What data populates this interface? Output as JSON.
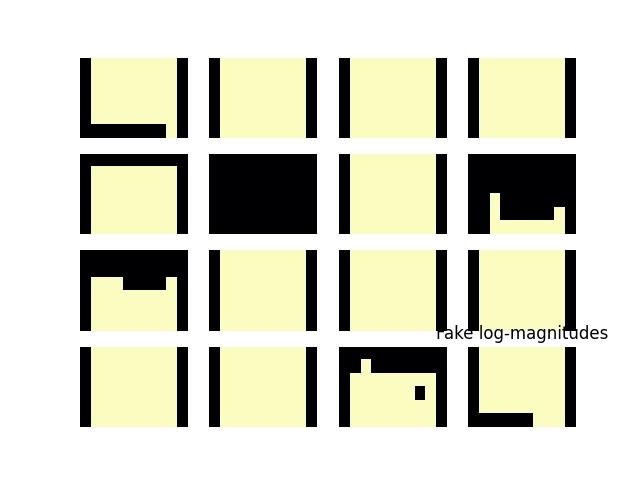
{
  "chart_data": {
    "type": "heatmap",
    "tick_labels": false,
    "color_range": [
      0,
      1
    ],
    "panels": [
      {
        "cells": [
          [
            0,
            1,
            1,
            1,
            1,
            1,
            1,
            1,
            1,
            0
          ],
          [
            0,
            1,
            1,
            1,
            1,
            1,
            1,
            1,
            1,
            0
          ],
          [
            0,
            1,
            1,
            1,
            1,
            1,
            1,
            1,
            1,
            0
          ],
          [
            0,
            1,
            1,
            1,
            1,
            1,
            1,
            1,
            1,
            0
          ],
          [
            0,
            1,
            1,
            1,
            1,
            1,
            1,
            1,
            1,
            0
          ],
          [
            0,
            0,
            0,
            0,
            0,
            0,
            0,
            0,
            1,
            0
          ]
        ]
      },
      {
        "cells": [
          [
            0,
            1,
            1,
            1,
            1,
            1,
            1,
            1,
            1,
            0
          ],
          [
            0,
            1,
            1,
            1,
            1,
            1,
            1,
            1,
            1,
            0
          ],
          [
            0,
            1,
            1,
            1,
            1,
            1,
            1,
            1,
            1,
            0
          ],
          [
            0,
            1,
            1,
            1,
            1,
            1,
            1,
            1,
            1,
            0
          ],
          [
            0,
            1,
            1,
            1,
            1,
            1,
            1,
            1,
            1,
            0
          ],
          [
            0,
            1,
            1,
            1,
            1,
            1,
            1,
            1,
            1,
            0
          ]
        ]
      },
      {
        "cells": [
          [
            0,
            1,
            1,
            1,
            1,
            1,
            1,
            1,
            1,
            0
          ],
          [
            0,
            1,
            1,
            1,
            1,
            1,
            1,
            1,
            1,
            0
          ],
          [
            0,
            1,
            1,
            1,
            1,
            1,
            1,
            1,
            1,
            0
          ],
          [
            0,
            1,
            1,
            1,
            1,
            1,
            1,
            1,
            1,
            0
          ],
          [
            0,
            1,
            1,
            1,
            1,
            1,
            1,
            1,
            1,
            0
          ],
          [
            0,
            1,
            1,
            1,
            1,
            1,
            1,
            1,
            1,
            0
          ]
        ]
      },
      {
        "cells": [
          [
            0,
            1,
            1,
            1,
            1,
            1,
            1,
            1,
            1,
            0
          ],
          [
            0,
            1,
            1,
            1,
            1,
            1,
            1,
            1,
            1,
            0
          ],
          [
            0,
            1,
            1,
            1,
            1,
            1,
            1,
            1,
            1,
            0
          ],
          [
            0,
            1,
            1,
            1,
            1,
            1,
            1,
            1,
            1,
            0
          ],
          [
            0,
            1,
            1,
            1,
            1,
            1,
            1,
            1,
            1,
            0
          ],
          [
            0,
            1,
            1,
            1,
            1,
            1,
            1,
            1,
            1,
            0
          ]
        ]
      },
      {
        "cells": [
          [
            0,
            0,
            0,
            0,
            0,
            0,
            0,
            0,
            0,
            0
          ],
          [
            0,
            1,
            1,
            1,
            1,
            1,
            1,
            1,
            1,
            0
          ],
          [
            0,
            1,
            1,
            1,
            1,
            1,
            1,
            1,
            1,
            0
          ],
          [
            0,
            1,
            1,
            1,
            1,
            1,
            1,
            1,
            1,
            0
          ],
          [
            0,
            1,
            1,
            1,
            1,
            1,
            1,
            1,
            1,
            0
          ],
          [
            0,
            1,
            1,
            1,
            1,
            1,
            1,
            1,
            1,
            0
          ]
        ]
      },
      {
        "cells": [
          [
            0,
            0,
            0,
            0,
            0,
            0,
            0,
            0,
            0,
            0
          ],
          [
            0,
            0,
            0,
            0,
            0,
            0,
            0,
            0,
            0,
            0
          ],
          [
            0,
            0,
            0,
            0,
            0,
            0,
            0,
            0,
            0,
            0
          ],
          [
            0,
            0,
            0,
            0,
            0,
            0,
            0,
            0,
            0,
            0
          ],
          [
            0,
            0,
            0,
            0,
            0,
            0,
            0,
            0,
            0,
            0
          ],
          [
            0,
            0,
            0,
            0,
            0,
            0,
            0,
            0,
            0,
            0
          ]
        ]
      },
      {
        "cells": [
          [
            0,
            1,
            1,
            1,
            1,
            1,
            1,
            1,
            1,
            0
          ],
          [
            0,
            1,
            1,
            1,
            1,
            1,
            1,
            1,
            1,
            0
          ],
          [
            0,
            1,
            1,
            1,
            1,
            1,
            1,
            1,
            1,
            0
          ],
          [
            0,
            1,
            1,
            1,
            1,
            1,
            1,
            1,
            1,
            0
          ],
          [
            0,
            1,
            1,
            1,
            1,
            1,
            1,
            1,
            1,
            0
          ],
          [
            0,
            1,
            1,
            1,
            1,
            1,
            1,
            1,
            1,
            0
          ]
        ]
      },
      {
        "cells": [
          [
            0,
            0,
            0,
            0,
            0,
            0,
            0,
            0,
            0,
            0
          ],
          [
            0,
            0,
            0,
            0,
            0,
            0,
            0,
            0,
            0,
            0
          ],
          [
            0,
            0,
            0,
            0,
            0,
            0,
            0,
            0,
            0,
            0
          ],
          [
            0,
            0,
            1,
            0,
            0,
            0,
            0,
            0,
            0,
            0
          ],
          [
            0,
            0,
            1,
            0,
            0,
            0,
            0,
            0,
            1,
            0
          ],
          [
            0,
            0,
            1,
            1,
            1,
            1,
            1,
            1,
            1,
            0
          ]
        ]
      },
      {
        "cells": [
          [
            0,
            0,
            0,
            0,
            0,
            0,
            0,
            0,
            0,
            0
          ],
          [
            0,
            0,
            0,
            0,
            0,
            0,
            0,
            0,
            0,
            0
          ],
          [
            0,
            1,
            1,
            1,
            0,
            0,
            0,
            0,
            1,
            0
          ],
          [
            0,
            1,
            1,
            1,
            1,
            1,
            1,
            1,
            1,
            0
          ],
          [
            0,
            1,
            1,
            1,
            1,
            1,
            1,
            1,
            1,
            0
          ],
          [
            0,
            1,
            1,
            1,
            1,
            1,
            1,
            1,
            1,
            0
          ]
        ]
      },
      {
        "cells": [
          [
            0,
            1,
            1,
            1,
            1,
            1,
            1,
            1,
            1,
            0
          ],
          [
            0,
            1,
            1,
            1,
            1,
            1,
            1,
            1,
            1,
            0
          ],
          [
            0,
            1,
            1,
            1,
            1,
            1,
            1,
            1,
            1,
            0
          ],
          [
            0,
            1,
            1,
            1,
            1,
            1,
            1,
            1,
            1,
            0
          ],
          [
            0,
            1,
            1,
            1,
            1,
            1,
            1,
            1,
            1,
            0
          ],
          [
            0,
            1,
            1,
            1,
            1,
            1,
            1,
            1,
            1,
            0
          ]
        ]
      },
      {
        "cells": [
          [
            0,
            1,
            1,
            1,
            1,
            1,
            1,
            1,
            1,
            0
          ],
          [
            0,
            1,
            1,
            1,
            1,
            1,
            1,
            1,
            1,
            0
          ],
          [
            0,
            1,
            1,
            1,
            1,
            1,
            1,
            1,
            1,
            0
          ],
          [
            0,
            1,
            1,
            1,
            1,
            1,
            1,
            1,
            1,
            0
          ],
          [
            0,
            1,
            1,
            1,
            1,
            1,
            1,
            1,
            1,
            0
          ],
          [
            0,
            1,
            1,
            1,
            1,
            1,
            1,
            1,
            1,
            0
          ]
        ]
      },
      {
        "cells": [
          [
            0,
            1,
            1,
            1,
            1,
            1,
            1,
            1,
            1,
            0
          ],
          [
            0,
            1,
            1,
            1,
            1,
            1,
            1,
            1,
            1,
            0
          ],
          [
            0,
            1,
            1,
            1,
            1,
            1,
            1,
            1,
            1,
            0
          ],
          [
            0,
            1,
            1,
            1,
            1,
            1,
            1,
            1,
            1,
            0
          ],
          [
            0,
            1,
            1,
            1,
            1,
            1,
            1,
            1,
            1,
            0
          ],
          [
            0,
            1,
            1,
            1,
            1,
            1,
            1,
            1,
            1,
            0
          ]
        ]
      },
      {
        "cells": [
          [
            0,
            1,
            1,
            1,
            1,
            1,
            1,
            1,
            1,
            0
          ],
          [
            0,
            1,
            1,
            1,
            1,
            1,
            1,
            1,
            1,
            0
          ],
          [
            0,
            1,
            1,
            1,
            1,
            1,
            1,
            1,
            1,
            0
          ],
          [
            0,
            1,
            1,
            1,
            1,
            1,
            1,
            1,
            1,
            0
          ],
          [
            0,
            1,
            1,
            1,
            1,
            1,
            1,
            1,
            1,
            0
          ],
          [
            0,
            1,
            1,
            1,
            1,
            1,
            1,
            1,
            1,
            0
          ]
        ]
      },
      {
        "cells": [
          [
            0,
            1,
            1,
            1,
            1,
            1,
            1,
            1,
            1,
            0
          ],
          [
            0,
            1,
            1,
            1,
            1,
            1,
            1,
            1,
            1,
            0
          ],
          [
            0,
            1,
            1,
            1,
            1,
            1,
            1,
            1,
            1,
            0
          ],
          [
            0,
            1,
            1,
            1,
            1,
            1,
            1,
            1,
            1,
            0
          ],
          [
            0,
            1,
            1,
            1,
            1,
            1,
            1,
            1,
            1,
            0
          ],
          [
            0,
            1,
            1,
            1,
            1,
            1,
            1,
            1,
            1,
            0
          ]
        ]
      },
      {
        "cells": [
          [
            0,
            0,
            0,
            0,
            0,
            0,
            0,
            0,
            0,
            0
          ],
          [
            0,
            0,
            1,
            0,
            0,
            0,
            0,
            0,
            0,
            0
          ],
          [
            0,
            1,
            1,
            1,
            1,
            1,
            1,
            1,
            1,
            0
          ],
          [
            0,
            1,
            1,
            1,
            1,
            1,
            1,
            0,
            1,
            0
          ],
          [
            0,
            1,
            1,
            1,
            1,
            1,
            1,
            1,
            1,
            0
          ],
          [
            0,
            1,
            1,
            1,
            1,
            1,
            1,
            1,
            1,
            0
          ]
        ]
      },
      {
        "title": "Fake log-magnitudes",
        "cells": [
          [
            0,
            1,
            1,
            1,
            1,
            1,
            1,
            1,
            1,
            0
          ],
          [
            0,
            1,
            1,
            1,
            1,
            1,
            1,
            1,
            1,
            0
          ],
          [
            0,
            1,
            1,
            1,
            1,
            1,
            1,
            1,
            1,
            0
          ],
          [
            0,
            1,
            1,
            1,
            1,
            1,
            1,
            1,
            1,
            0
          ],
          [
            0,
            1,
            1,
            1,
            1,
            1,
            1,
            1,
            1,
            0
          ],
          [
            0,
            0,
            0,
            0,
            0,
            0,
            1,
            1,
            1,
            0
          ]
        ]
      }
    ]
  }
}
